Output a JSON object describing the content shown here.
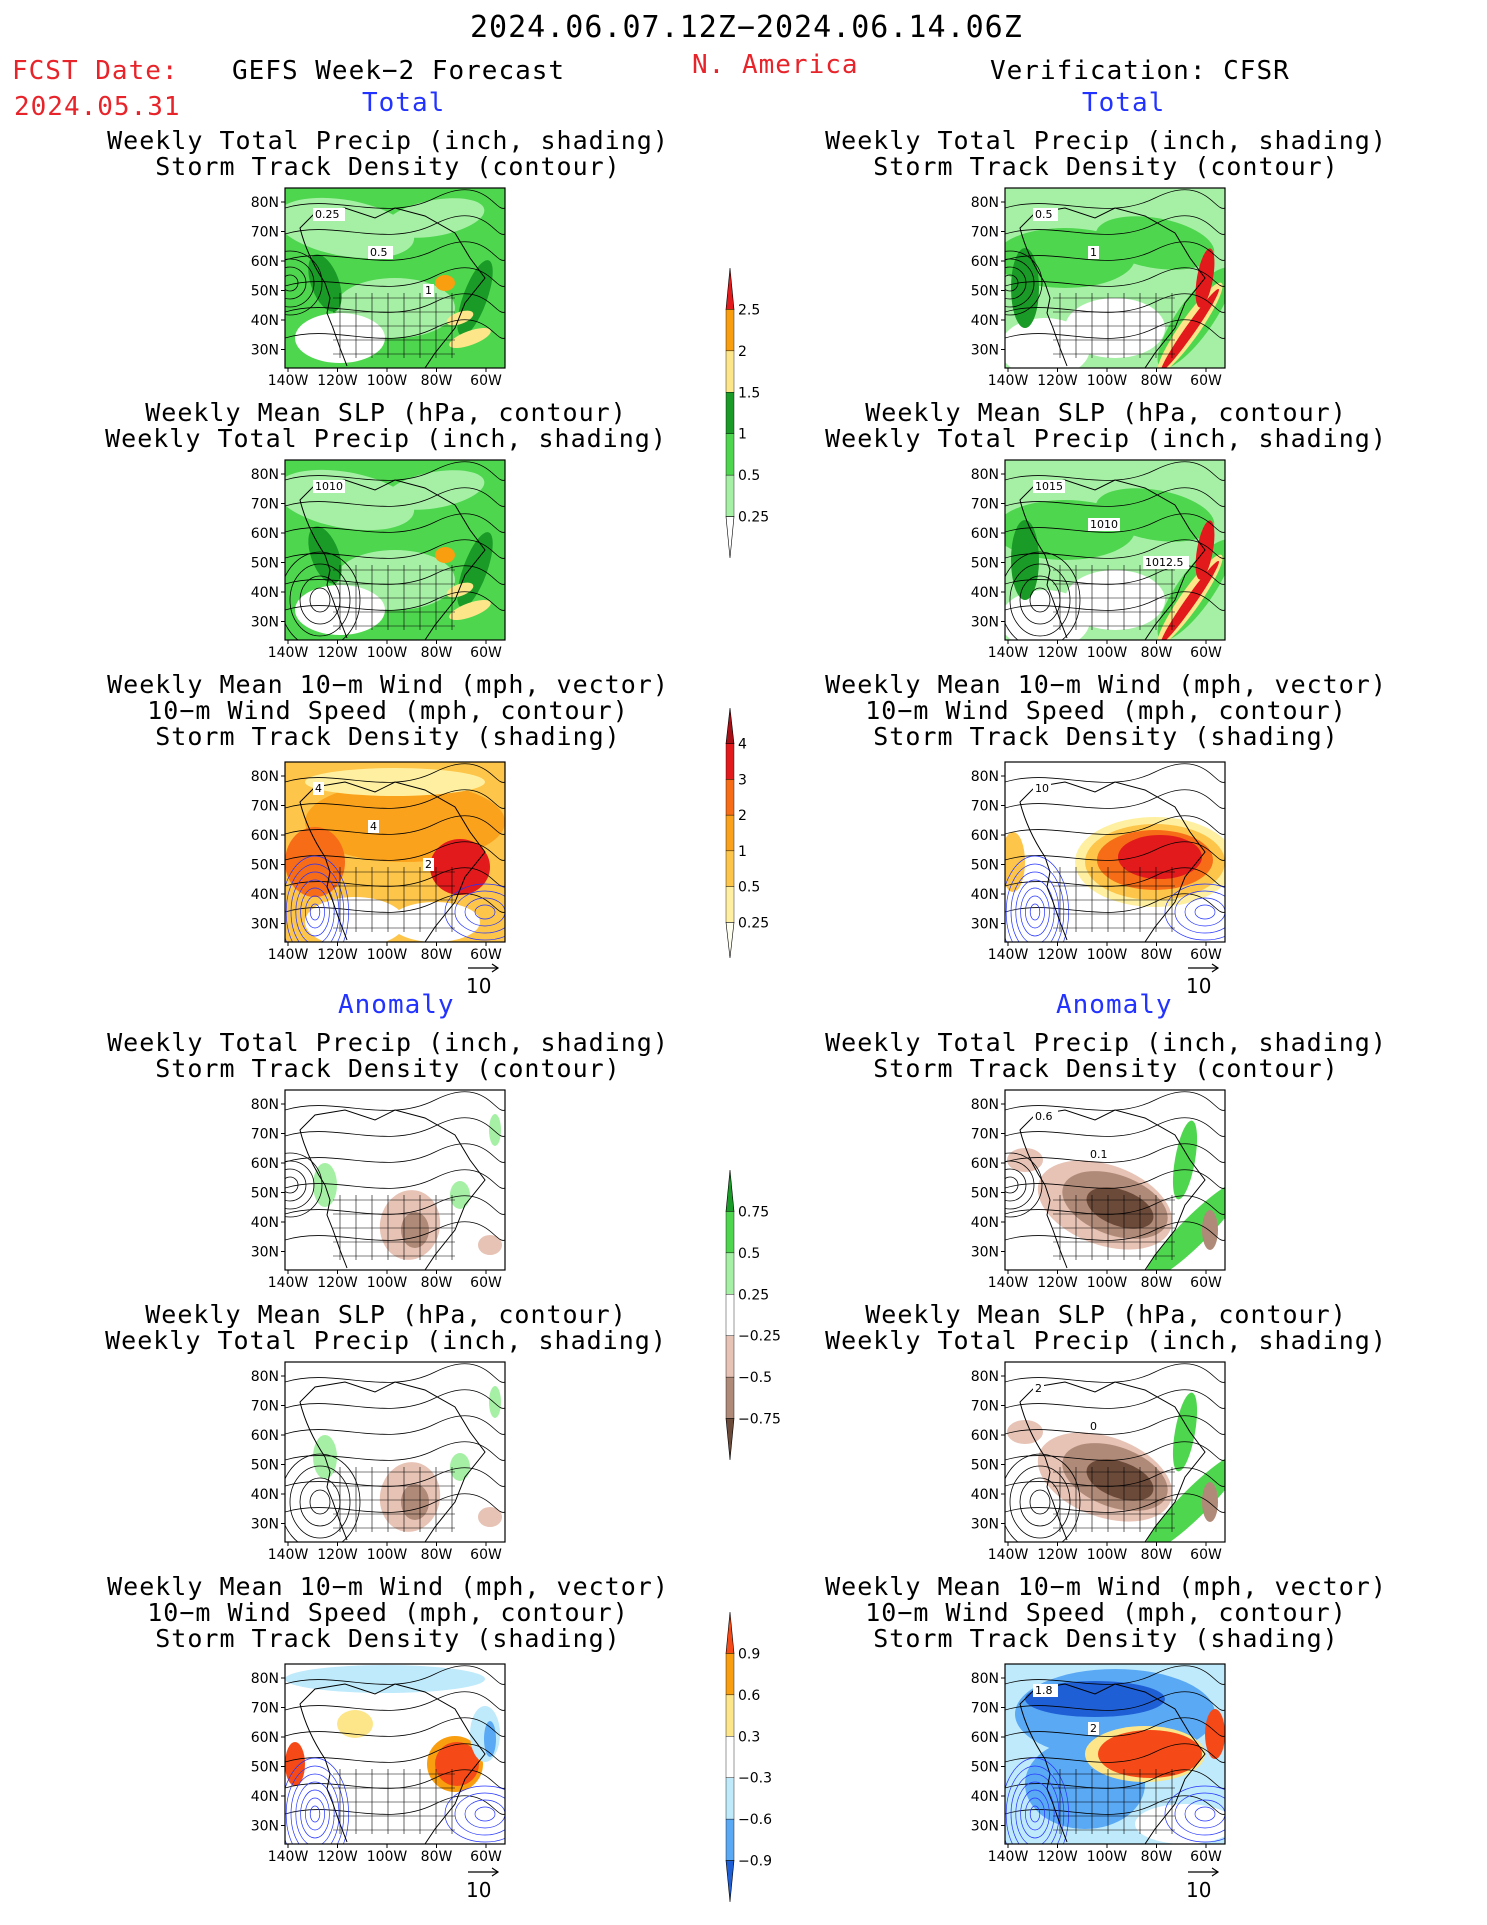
{
  "header": {
    "date_range": "2024.06.07.12Z−2024.06.14.06Z",
    "fcst_label": "FCST Date:",
    "fcst_date": "2024.05.31",
    "model_title": "GEFS Week−2 Forecast",
    "region": "N. America",
    "verification": "Verification: CFSR"
  },
  "sections": {
    "total": "Total",
    "anomaly": "Anomaly"
  },
  "titles": {
    "precip_track": [
      "Weekly Total Precip (inch, shading)",
      "Storm Track Density (contour)"
    ],
    "slp_precip": [
      "Weekly Mean SLP (hPa, contour)",
      "Weekly Total Precip (inch, shading)"
    ],
    "wind_track": [
      "Weekly Mean 10−m Wind (mph, vector)",
      "10−m Wind Speed (mph, contour)",
      "Storm Track Density (shading)"
    ]
  },
  "axes": {
    "lat_labels": [
      "80N",
      "70N",
      "60N",
      "50N",
      "40N",
      "30N"
    ],
    "lon_labels": [
      "140W",
      "120W",
      "100W",
      "80W",
      "60W"
    ]
  },
  "wind_reference": "10",
  "contour_labels": {
    "fc_total_precip": [
      "0.25",
      "0.5",
      "1"
    ],
    "ver_total_precip": [
      "0.5",
      "1"
    ],
    "fc_total_slp": [
      "1010"
    ],
    "ver_total_slp": [
      "1015",
      "1010",
      "1012.5"
    ],
    "fc_total_wind": [
      "4",
      "4",
      "2"
    ],
    "ver_total_wind": [
      "10"
    ],
    "ver_anom_precip": [
      "0.6",
      "0.1"
    ],
    "ver_anom_slp": [
      "2",
      "0"
    ],
    "ver_anom_wind": [
      "1.8",
      "2"
    ]
  },
  "colorbars": {
    "precip_total": {
      "labels": [
        "2.5",
        "2",
        "1.5",
        "1",
        "0.5",
        "0.25"
      ],
      "colors": [
        "#e31a1c",
        "#f99e0f",
        "#fde68a",
        "#1a9a26",
        "#4fd64f",
        "#a6f0a6",
        "#ffffff"
      ]
    },
    "track_total": {
      "labels": [
        "4",
        "3",
        "2",
        "1",
        "0.5",
        "0.25"
      ],
      "colors": [
        "#a50f15",
        "#e31a1c",
        "#f76c17",
        "#fba21c",
        "#fdc54a",
        "#fef0a0",
        "#fffff0"
      ]
    },
    "precip_anom": {
      "labels": [
        "0.75",
        "0.5",
        "0.25",
        "−0.25",
        "−0.5",
        "−0.75"
      ],
      "colors": [
        "#1a9a26",
        "#4fd64f",
        "#a6f0a6",
        "#ffffff",
        "#e7c3b6",
        "#b08a78",
        "#6b4a3a"
      ]
    },
    "track_anom": {
      "labels": [
        "0.9",
        "0.6",
        "0.3",
        "−0.3",
        "−0.6",
        "−0.9"
      ],
      "colors": [
        "#f54a17",
        "#f99e0f",
        "#fde68a",
        "#ffffff",
        "#bfeafb",
        "#5aa9f5",
        "#1f5fd6"
      ]
    }
  }
}
